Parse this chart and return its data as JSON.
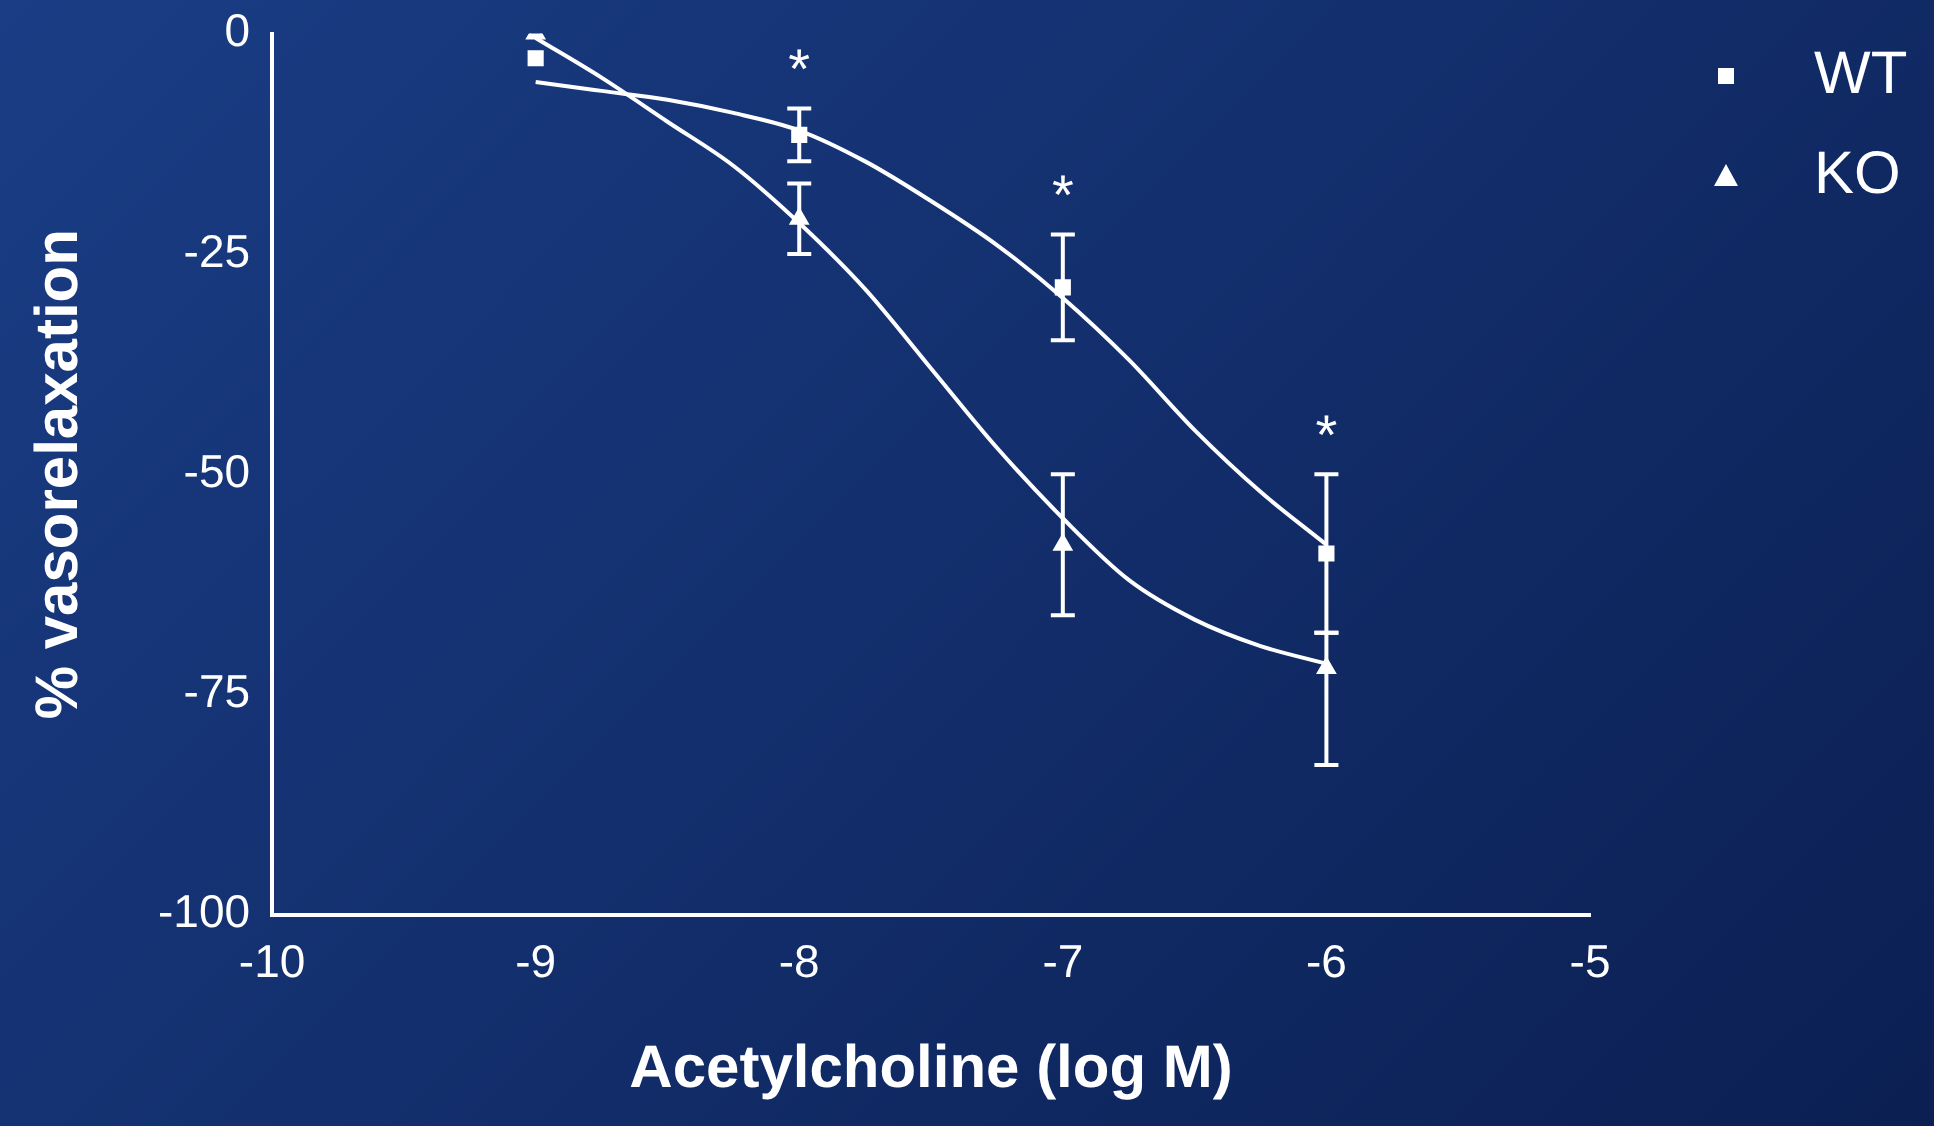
{
  "chart_data": {
    "type": "scatter",
    "xlabel": "Acetylcholine (log M)",
    "ylabel": "% vasorelaxation",
    "xlim": [
      -10,
      -5
    ],
    "xticks": [
      -10,
      -9,
      -8,
      -7,
      -6,
      -5
    ],
    "ylim": [
      -100,
      0
    ],
    "yticks": [
      -100,
      -75,
      -50,
      -25,
      0
    ],
    "grid": false,
    "legend": "top right",
    "series": [
      {
        "name": "WT",
        "marker": "square",
        "color": "#ffffff",
        "x": [
          -9,
          -8,
          -7,
          -6
        ],
        "values": [
          -2.8,
          -11.5,
          -28.8,
          -59
        ],
        "errors": [
          null,
          3,
          6,
          9
        ]
      },
      {
        "name": "KO",
        "marker": "triangle",
        "color": "#ffffff",
        "x": [
          -9,
          -8,
          -7,
          -6
        ],
        "values": [
          0,
          -21,
          -58,
          -72
        ],
        "errors": [
          null,
          4,
          8,
          [
            -83,
            -68
          ]
        ]
      },
      {
        "type": "line",
        "marker": "none",
        "color": "#ffffff",
        "x": [
          -9,
          -8.75,
          -8.5,
          -8.25,
          -8,
          -7.75,
          -7.5,
          -7.25,
          -7,
          -6.75,
          -6.5,
          -6.25,
          -6
        ],
        "values": [
          -5.5,
          -6.5,
          -7.5,
          -9,
          -11,
          -14.5,
          -19,
          -24,
          -30,
          -37,
          -45,
          -52,
          -58
        ]
      },
      {
        "type": "line",
        "marker": "none",
        "color": "#ffffff",
        "x": [
          -9,
          -8.75,
          -8.5,
          -8.25,
          -8,
          -7.75,
          -7.5,
          -7.25,
          -7,
          -6.75,
          -6.5,
          -6.25,
          -6
        ],
        "values": [
          -0.5,
          -5,
          -10,
          -15,
          -21.5,
          -29,
          -38,
          -47,
          -55,
          -62,
          -66.5,
          -69.5,
          -71.5
        ]
      }
    ],
    "annotations": [
      {
        "text": "*",
        "x": -8,
        "y": -8.5
      },
      {
        "text": "*",
        "x": -7,
        "y": -22.8
      },
      {
        "text": "*",
        "x": -6,
        "y": -50
      }
    ]
  }
}
